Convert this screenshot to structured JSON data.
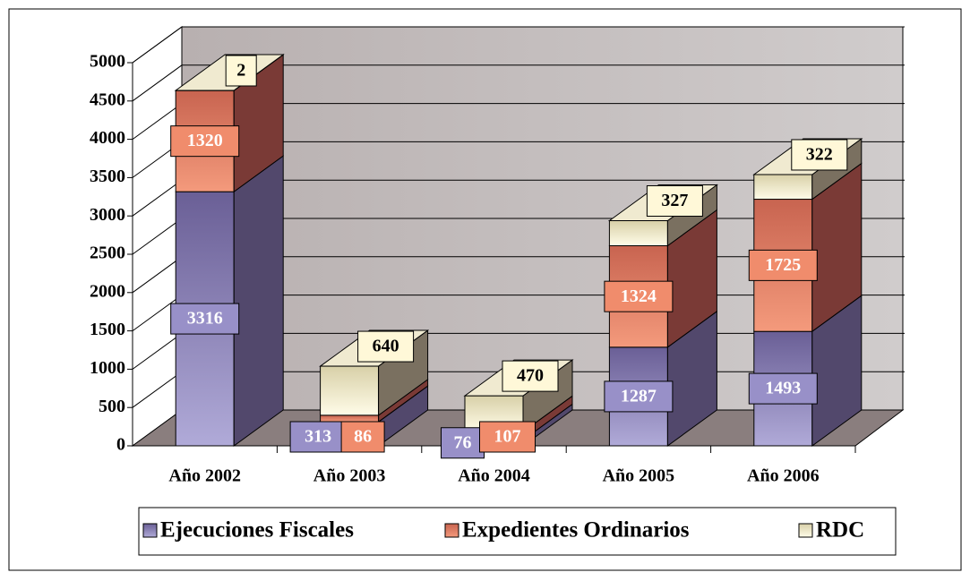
{
  "chart_data": {
    "type": "bar3d_stacked",
    "categories": [
      "Año 2002",
      "Año 2003",
      "Año 2004",
      "Año 2005",
      "Año 2006"
    ],
    "series": [
      {
        "name": "Ejecuciones Fiscales",
        "color": "#9890c8",
        "values": [
          3316,
          313,
          76,
          1287,
          1493
        ]
      },
      {
        "name": "Expedientes Ordinarios",
        "color": "#f08c6c",
        "values": [
          1320,
          86,
          107,
          1324,
          1725
        ]
      },
      {
        "name": "RDC",
        "color": "#fff8d8",
        "values": [
          2,
          640,
          470,
          327,
          322
        ]
      }
    ],
    "ylim": [
      0,
      5000
    ],
    "yticks": [
      0,
      500,
      1000,
      1500,
      2000,
      2500,
      3000,
      3500,
      4000,
      4500,
      5000
    ],
    "grid": true,
    "legend": "bottom"
  }
}
